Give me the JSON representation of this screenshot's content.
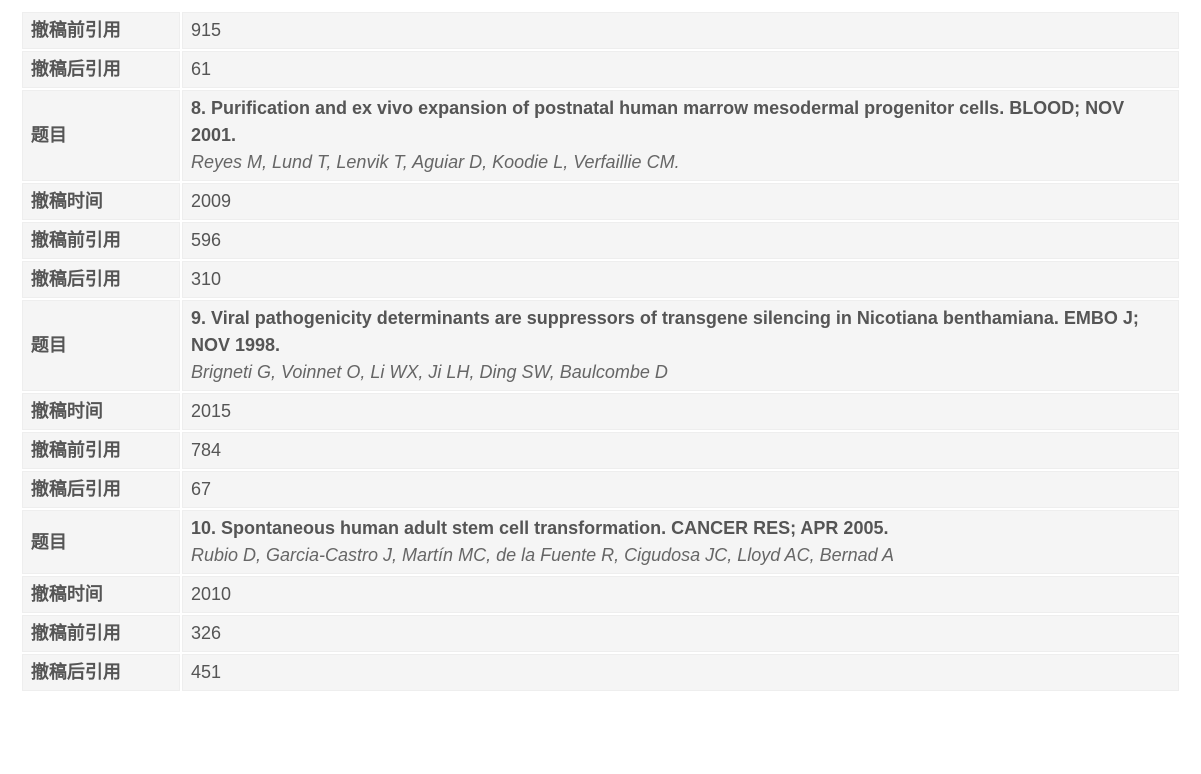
{
  "labels": {
    "cites_before": "撤稿前引用",
    "cites_after": "撤稿后引用",
    "title": "题目",
    "retract_time": "撤稿时间"
  },
  "entries": [
    {
      "cites_before_top": "915",
      "cites_after_top": "61",
      "title": "8. Purification and ex vivo expansion of postnatal human marrow mesodermal progenitor cells. BLOOD; NOV 2001.",
      "authors": "Reyes M, Lund T, Lenvik T, Aguiar D, Koodie L, Verfaillie CM.",
      "retract_time": "2009",
      "cites_before": "596",
      "cites_after": "310"
    },
    {
      "title": "9. Viral pathogenicity determinants are suppressors of transgene silencing in Nicotiana benthamiana. EMBO J; NOV 1998.",
      "authors": "Brigneti G, Voinnet O, Li WX, Ji LH, Ding SW, Baulcombe D",
      "retract_time": "2015",
      "cites_before": "784",
      "cites_after": "67"
    },
    {
      "title": "10. Spontaneous human adult stem cell transformation. CANCER RES; APR 2005.",
      "authors": "Rubio D, Garcia-Castro J, Martín MC, de la Fuente R, Cigudosa JC, Lloyd AC, Bernad A",
      "retract_time": "2010",
      "cites_before": "326",
      "cites_after": "451"
    }
  ]
}
